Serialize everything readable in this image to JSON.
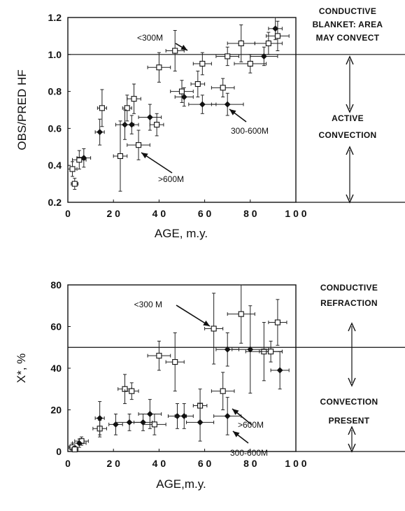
{
  "chart_data": [
    {
      "type": "scatter",
      "xlabel": "AGE, m.y.",
      "ylabel": "OBS/PRED HF",
      "xlim": [
        0,
        100
      ],
      "ylim": [
        0.2,
        1.2
      ],
      "x_ticks": [
        "0",
        "2 0",
        "4 0",
        "6 0",
        "8 0",
        "1 0 0"
      ],
      "y_ticks": [
        "0.2",
        "0.4",
        "0.6",
        "0.8",
        "1.0",
        "1.2"
      ],
      "reference_line": 1.0,
      "zone_labels": [
        {
          "lines": [
            "CONDUCTIVE",
            "BLANKET: AREA",
            "MAY CONVECT"
          ]
        },
        {
          "lines": [
            "ACTIVE",
            "CONVECTION"
          ]
        }
      ],
      "annotations": [
        {
          "text": "<300M",
          "series": "<300M"
        },
        {
          "text": "300-600M",
          "series": "300-600M"
        },
        {
          "text": ">600M",
          "series": ">600M"
        }
      ],
      "series": [
        {
          "marker": "open-square",
          "points": [
            {
              "x": 2,
              "y": 0.38,
              "xerr": 2,
              "yerr": 0.04
            },
            {
              "x": 3,
              "y": 0.3,
              "xerr": 1.5,
              "yerr": 0.03
            },
            {
              "x": 5,
              "y": 0.43,
              "xerr": 3,
              "yerr": 0.05
            },
            {
              "x": 15,
              "y": 0.71,
              "xerr": 2,
              "yerr": 0.1
            },
            {
              "x": 23,
              "y": 0.45,
              "xerr": 3,
              "yerr": 0.19
            },
            {
              "x": 26,
              "y": 0.71,
              "xerr": 2,
              "yerr": 0.07
            },
            {
              "x": 29,
              "y": 0.76,
              "xerr": 3,
              "yerr": 0.08
            },
            {
              "x": 31,
              "y": 0.51,
              "xerr": 5,
              "yerr": 0.08
            },
            {
              "x": 39,
              "y": 0.62,
              "xerr": 3,
              "yerr": 0.06
            },
            {
              "x": 40,
              "y": 0.93,
              "xerr": 5,
              "yerr": 0.08
            },
            {
              "x": 47,
              "y": 1.02,
              "xerr": 4,
              "yerr": 0.11
            },
            {
              "x": 50,
              "y": 0.8,
              "xerr": 5,
              "yerr": 0.06
            },
            {
              "x": 57,
              "y": 0.84,
              "xerr": 3,
              "yerr": 0.07
            },
            {
              "x": 59,
              "y": 0.95,
              "xerr": 4,
              "yerr": 0.06
            },
            {
              "x": 68,
              "y": 0.82,
              "xerr": 5,
              "yerr": 0.05
            },
            {
              "x": 70,
              "y": 0.99,
              "xerr": 5,
              "yerr": 0.05
            },
            {
              "x": 76,
              "y": 1.06,
              "xerr": 6,
              "yerr": 0.1
            },
            {
              "x": 80,
              "y": 0.95,
              "xerr": 7,
              "yerr": 0.05
            },
            {
              "x": 88,
              "y": 1.06,
              "xerr": 6,
              "yerr": 0.06
            },
            {
              "x": 92,
              "y": 1.1,
              "xerr": 5,
              "yerr": 0.08
            }
          ]
        },
        {
          "marker": "filled-diamond",
          "points": [
            {
              "x": 7,
              "y": 0.44,
              "xerr": 3,
              "yerr": 0.05
            },
            {
              "x": 14,
              "y": 0.58,
              "xerr": 2,
              "yerr": 0.07
            },
            {
              "x": 25,
              "y": 0.62,
              "xerr": 4,
              "yerr": 0.08
            },
            {
              "x": 28,
              "y": 0.62,
              "xerr": 3,
              "yerr": 0.05
            },
            {
              "x": 36,
              "y": 0.66,
              "xerr": 5,
              "yerr": 0.07
            },
            {
              "x": 51,
              "y": 0.77,
              "xerr": 4,
              "yerr": 0.05
            },
            {
              "x": 59,
              "y": 0.73,
              "xerr": 6,
              "yerr": 0.05
            },
            {
              "x": 70,
              "y": 0.73,
              "xerr": 7,
              "yerr": 0.06
            },
            {
              "x": 86,
              "y": 0.99,
              "xerr": 6,
              "yerr": 0.05
            },
            {
              "x": 91,
              "y": 1.14,
              "xerr": 3,
              "yerr": 0.06
            }
          ]
        }
      ]
    },
    {
      "type": "scatter",
      "xlabel": "AGE,m.y.",
      "ylabel": "X*, %",
      "xlim": [
        0,
        100
      ],
      "ylim": [
        0,
        80
      ],
      "x_ticks": [
        "0",
        "2 0",
        "4 0",
        "6 0",
        "8 0",
        "1 0 0"
      ],
      "y_ticks": [
        "0",
        "20",
        "40",
        "60",
        "80"
      ],
      "reference_line": 50,
      "zone_labels": [
        {
          "lines": [
            "CONDUCTIVE",
            "REFRACTION"
          ]
        },
        {
          "lines": [
            "CONVECTION",
            "PRESENT"
          ]
        }
      ],
      "annotations": [
        {
          "text": "<300 M",
          "series": "<300 M"
        },
        {
          "text": ">600M",
          "series": ">600M"
        },
        {
          "text": "300-600M",
          "series": "300-600M"
        }
      ],
      "series": [
        {
          "marker": "open-square",
          "points": [
            {
              "x": 2,
              "y": 2,
              "xerr": 1.5,
              "yerr": 2
            },
            {
              "x": 3,
              "y": 1,
              "xerr": 1.5,
              "yerr": 1.5
            },
            {
              "x": 6,
              "y": 5,
              "xerr": 3,
              "yerr": 2
            },
            {
              "x": 14,
              "y": 11,
              "xerr": 3,
              "yerr": 4
            },
            {
              "x": 25,
              "y": 30,
              "xerr": 3,
              "yerr": 7
            },
            {
              "x": 28,
              "y": 29,
              "xerr": 3,
              "yerr": 4
            },
            {
              "x": 38,
              "y": 13,
              "xerr": 5,
              "yerr": 5
            },
            {
              "x": 40,
              "y": 46,
              "xerr": 5,
              "yerr": 7
            },
            {
              "x": 47,
              "y": 43,
              "xerr": 4,
              "yerr": 14
            },
            {
              "x": 58,
              "y": 22,
              "xerr": 3,
              "yerr": 8
            },
            {
              "x": 64,
              "y": 59,
              "xerr": 4,
              "yerr": 17
            },
            {
              "x": 68,
              "y": 29,
              "xerr": 5,
              "yerr": 9
            },
            {
              "x": 76,
              "y": 66,
              "xerr": 6,
              "yerr": 14
            },
            {
              "x": 86,
              "y": 48,
              "xerr": 8,
              "yerr": 14
            },
            {
              "x": 89,
              "y": 48,
              "xerr": 5,
              "yerr": 5
            },
            {
              "x": 92,
              "y": 62,
              "xerr": 4,
              "yerr": 11
            }
          ]
        },
        {
          "marker": "filled-diamond",
          "points": [
            {
              "x": 5,
              "y": 4,
              "xerr": 3,
              "yerr": 2
            },
            {
              "x": 14,
              "y": 16,
              "xerr": 2,
              "yerr": 8
            },
            {
              "x": 21,
              "y": 13,
              "xerr": 3,
              "yerr": 5
            },
            {
              "x": 27,
              "y": 14,
              "xerr": 6,
              "yerr": 4
            },
            {
              "x": 33,
              "y": 14,
              "xerr": 4,
              "yerr": 4
            },
            {
              "x": 36,
              "y": 18,
              "xerr": 5,
              "yerr": 7
            },
            {
              "x": 48,
              "y": 17,
              "xerr": 4,
              "yerr": 6
            },
            {
              "x": 51,
              "y": 17,
              "xerr": 4,
              "yerr": 6
            },
            {
              "x": 58,
              "y": 14,
              "xerr": 6,
              "yerr": 9
            },
            {
              "x": 70,
              "y": 17,
              "xerr": 6,
              "yerr": 9
            },
            {
              "x": 70,
              "y": 49,
              "xerr": 5,
              "yerr": 8
            },
            {
              "x": 80,
              "y": 49,
              "xerr": 8,
              "yerr": 21
            },
            {
              "x": 93,
              "y": 39,
              "xerr": 4,
              "yerr": 9
            }
          ]
        }
      ]
    }
  ]
}
